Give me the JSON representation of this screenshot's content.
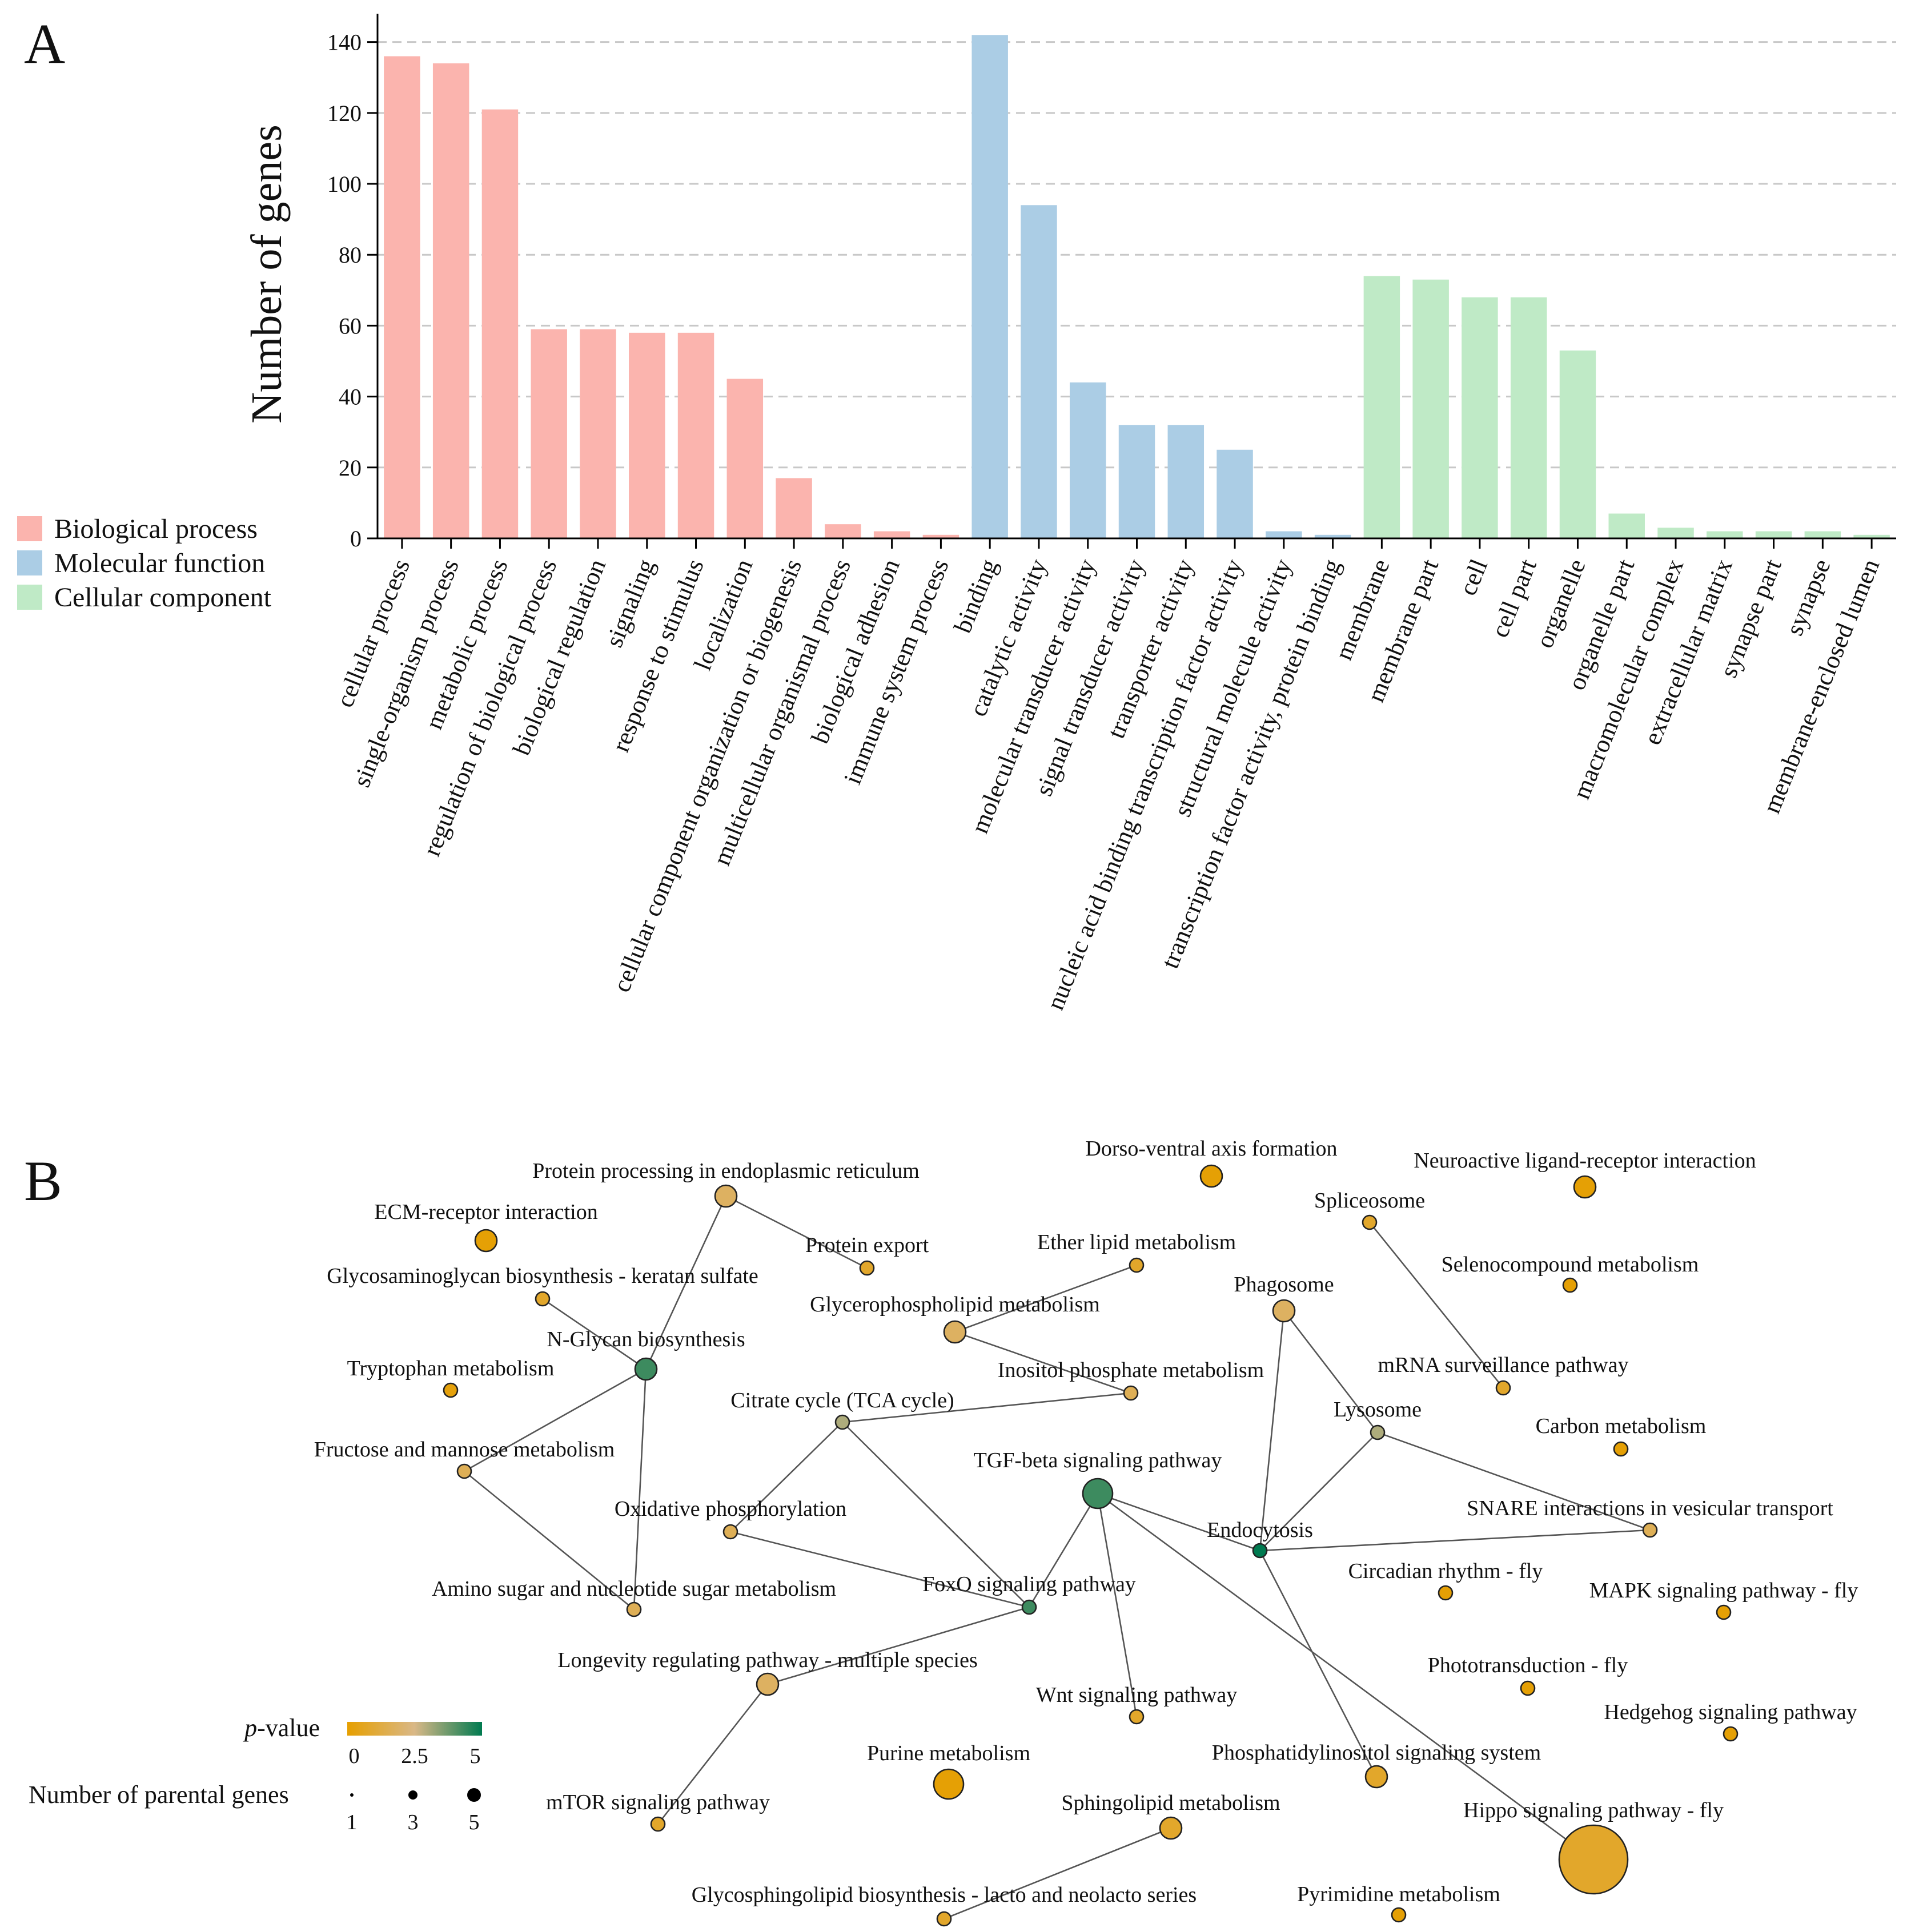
{
  "panels": {
    "a_label": "A",
    "b_label": "B"
  },
  "chart_data": [
    {
      "type": "bar",
      "ylabel": "Number of genes",
      "ylim": [
        0,
        148
      ],
      "yticks": [
        0,
        20,
        40,
        60,
        80,
        100,
        120,
        140
      ],
      "grid": "horizontal dashed",
      "legend": [
        "Biological process",
        "Molecular function",
        "Cellular component"
      ],
      "colors": {
        "Biological process": "#fbb4ae",
        "Molecular function": "#abcde5",
        "Cellular component": "#bfeac6"
      },
      "categories": [
        "cellular process",
        "single-organism process",
        "metabolic process",
        "regulation of biological process",
        "biological regulation",
        "signaling",
        "response to stimulus",
        "localization",
        "cellular component organization or biogenesis",
        "multicellular organismal process",
        "biological adhesion",
        "immune system process",
        "binding",
        "catalytic activity",
        "molecular transducer activity",
        "signal transducer activity",
        "transporter activity",
        "nucleic acid binding transcription factor activity",
        "structural molecule activity",
        "transcription factor activity, protein binding",
        "membrane",
        "membrane part",
        "cell",
        "cell part",
        "organelle",
        "organelle part",
        "macromolecular complex",
        "extracellular matrix",
        "synapse part",
        "synapse",
        "membrane-enclosed lumen"
      ],
      "groups": [
        "Biological process",
        "Biological process",
        "Biological process",
        "Biological process",
        "Biological process",
        "Biological process",
        "Biological process",
        "Biological process",
        "Biological process",
        "Biological process",
        "Biological process",
        "Biological process",
        "Molecular function",
        "Molecular function",
        "Molecular function",
        "Molecular function",
        "Molecular function",
        "Molecular function",
        "Molecular function",
        "Molecular function",
        "Cellular component",
        "Cellular component",
        "Cellular component",
        "Cellular component",
        "Cellular component",
        "Cellular component",
        "Cellular component",
        "Cellular component",
        "Cellular component",
        "Cellular component",
        "Cellular component"
      ],
      "values": [
        136,
        134,
        121,
        59,
        59,
        58,
        58,
        45,
        17,
        4,
        2,
        1,
        142,
        94,
        44,
        32,
        32,
        25,
        2,
        1,
        74,
        73,
        68,
        68,
        53,
        7,
        3,
        2,
        2,
        2,
        1
      ]
    },
    {
      "type": "network",
      "legend_pvalue": {
        "title_italic": "p",
        "title_rest": "-value",
        "ticks": [
          "0",
          "2.5",
          "5"
        ],
        "range": [
          0,
          5
        ],
        "color_low": "#e69f00",
        "color_mid": "#d9b887",
        "color_high": "#007a50"
      },
      "legend_size": {
        "title": "Number of parental genes",
        "ticks": [
          "1",
          "3",
          "5"
        ]
      },
      "nodes": [
        {
          "id": "ecm",
          "label": "ECM-receptor interaction",
          "p": 0.1,
          "genes": 2
        },
        {
          "id": "ppe",
          "label": "Protein processing in endoplasmic reticulum",
          "p": 1.8,
          "genes": 2
        },
        {
          "id": "pex",
          "label": "Protein export",
          "p": 0.8,
          "genes": 1
        },
        {
          "id": "gag",
          "label": "Glycosaminoglycan biosynthesis - keratan sulfate",
          "p": 0.8,
          "genes": 1
        },
        {
          "id": "ngl",
          "label": "N-Glycan biosynthesis",
          "p": 4.3,
          "genes": 2
        },
        {
          "id": "trp",
          "label": "Tryptophan metabolism",
          "p": 0.2,
          "genes": 1
        },
        {
          "id": "fru",
          "label": "Fructose and mannose metabolism",
          "p": 1.6,
          "genes": 1
        },
        {
          "id": "ami",
          "label": "Amino sugar and nucleotide sugar metabolism",
          "p": 1.6,
          "genes": 1
        },
        {
          "id": "dva",
          "label": "Dorso-ventral axis formation",
          "p": 0.1,
          "genes": 2
        },
        {
          "id": "eth",
          "label": "Ether lipid metabolism",
          "p": 0.8,
          "genes": 1
        },
        {
          "id": "gly",
          "label": "Glycerophospholipid metabolism",
          "p": 1.8,
          "genes": 2
        },
        {
          "id": "ino",
          "label": "Inositol phosphate metabolism",
          "p": 1.6,
          "genes": 1
        },
        {
          "id": "tca",
          "label": "Citrate cycle (TCA cycle)",
          "p": 3.0,
          "genes": 1
        },
        {
          "id": "oxp",
          "label": "Oxidative phosphorylation",
          "p": 1.6,
          "genes": 1
        },
        {
          "id": "tgf",
          "label": "TGF-beta signaling pathway",
          "p": 4.3,
          "genes": 3
        },
        {
          "id": "fox",
          "label": "FoxO signaling pathway",
          "p": 4.3,
          "genes": 1
        },
        {
          "id": "lon",
          "label": "Longevity regulating pathway - multiple species",
          "p": 1.8,
          "genes": 2
        },
        {
          "id": "mto",
          "label": "mTOR signaling pathway",
          "p": 0.8,
          "genes": 1
        },
        {
          "id": "wnt",
          "label": "Wnt signaling pathway",
          "p": 0.8,
          "genes": 1
        },
        {
          "id": "pur",
          "label": "Purine metabolism",
          "p": 0.1,
          "genes": 3
        },
        {
          "id": "sph",
          "label": "Sphingolipid metabolism",
          "p": 0.8,
          "genes": 2
        },
        {
          "id": "gsl",
          "label": "Glycosphingolipid biosynthesis - lacto and neolacto series",
          "p": 0.8,
          "genes": 1
        },
        {
          "id": "neu",
          "label": "Neuroactive ligand-receptor interaction",
          "p": 0.1,
          "genes": 2
        },
        {
          "id": "spl",
          "label": "Spliceosome",
          "p": 0.8,
          "genes": 1
        },
        {
          "id": "sel",
          "label": "Selenocompound metabolism",
          "p": 0.1,
          "genes": 1
        },
        {
          "id": "pha",
          "label": "Phagosome",
          "p": 1.8,
          "genes": 2
        },
        {
          "id": "mrn",
          "label": "mRNA surveillance pathway",
          "p": 0.8,
          "genes": 1
        },
        {
          "id": "lys",
          "label": "Lysosome",
          "p": 3.0,
          "genes": 1
        },
        {
          "id": "car",
          "label": "Carbon metabolism",
          "p": 0.1,
          "genes": 1
        },
        {
          "id": "sna",
          "label": "SNARE interactions in vesicular transport",
          "p": 1.6,
          "genes": 1
        },
        {
          "id": "end",
          "label": "Endocytosis",
          "p": 5.0,
          "genes": 1
        },
        {
          "id": "cir",
          "label": "Circadian rhythm - fly",
          "p": 0.1,
          "genes": 1
        },
        {
          "id": "map",
          "label": "MAPK signaling pathway - fly",
          "p": 0.1,
          "genes": 1
        },
        {
          "id": "pho",
          "label": "Phototransduction - fly",
          "p": 0.1,
          "genes": 1
        },
        {
          "id": "hed",
          "label": "Hedgehog signaling pathway",
          "p": 0.1,
          "genes": 1
        },
        {
          "id": "phs",
          "label": "Phosphatidylinositol signaling system",
          "p": 0.8,
          "genes": 2
        },
        {
          "id": "hip",
          "label": "Hippo signaling pathway - fly",
          "p": 0.8,
          "genes": 5
        },
        {
          "id": "pyr",
          "label": "Pyrimidine metabolism",
          "p": 0.1,
          "genes": 1
        }
      ],
      "edges": [
        [
          "ppe",
          "pex"
        ],
        [
          "ppe",
          "ngl"
        ],
        [
          "gag",
          "ngl"
        ],
        [
          "ngl",
          "fru"
        ],
        [
          "ngl",
          "ami"
        ],
        [
          "fru",
          "ami"
        ],
        [
          "gly",
          "eth"
        ],
        [
          "gly",
          "ino"
        ],
        [
          "tca",
          "ino"
        ],
        [
          "tca",
          "oxp"
        ],
        [
          "tca",
          "fox"
        ],
        [
          "oxp",
          "fox"
        ],
        [
          "tgf",
          "fox"
        ],
        [
          "tgf",
          "wnt"
        ],
        [
          "tgf",
          "end"
        ],
        [
          "tgf",
          "hip"
        ],
        [
          "fox",
          "lon"
        ],
        [
          "lon",
          "mto"
        ],
        [
          "sph",
          "gsl"
        ],
        [
          "spl",
          "mrn"
        ],
        [
          "pha",
          "lys"
        ],
        [
          "pha",
          "end"
        ],
        [
          "lys",
          "end"
        ],
        [
          "lys",
          "sna"
        ],
        [
          "end",
          "sna"
        ],
        [
          "end",
          "phs"
        ]
      ]
    }
  ]
}
